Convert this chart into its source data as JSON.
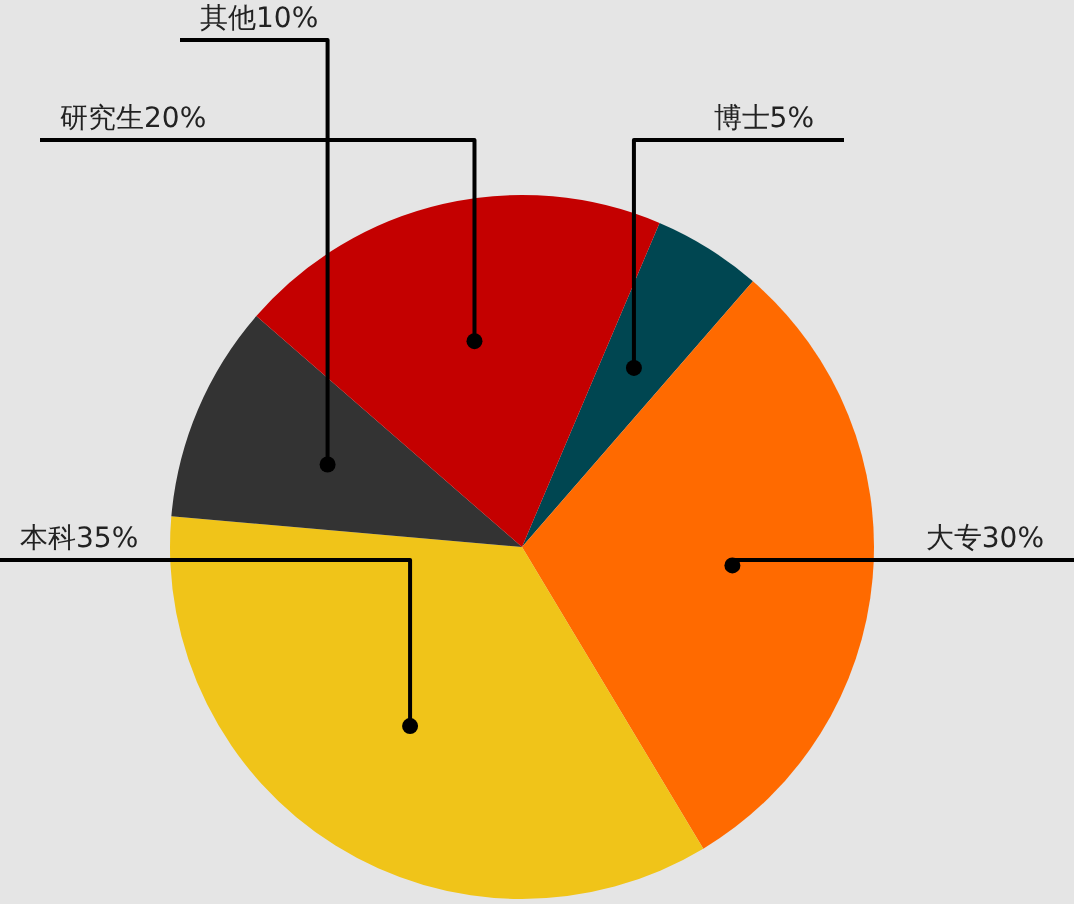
{
  "chart_data": {
    "type": "pie",
    "categories": [
      "博士",
      "大专",
      "本科",
      "其他",
      "研究生"
    ],
    "values": [
      5,
      30,
      35,
      10,
      20
    ],
    "colors": [
      "#004651",
      "#ff6a00",
      "#f0c419",
      "#333333",
      "#c40000"
    ],
    "value_labels": [
      "5%",
      "30%",
      "35%",
      "10%",
      "20%"
    ],
    "legend": false
  }
}
